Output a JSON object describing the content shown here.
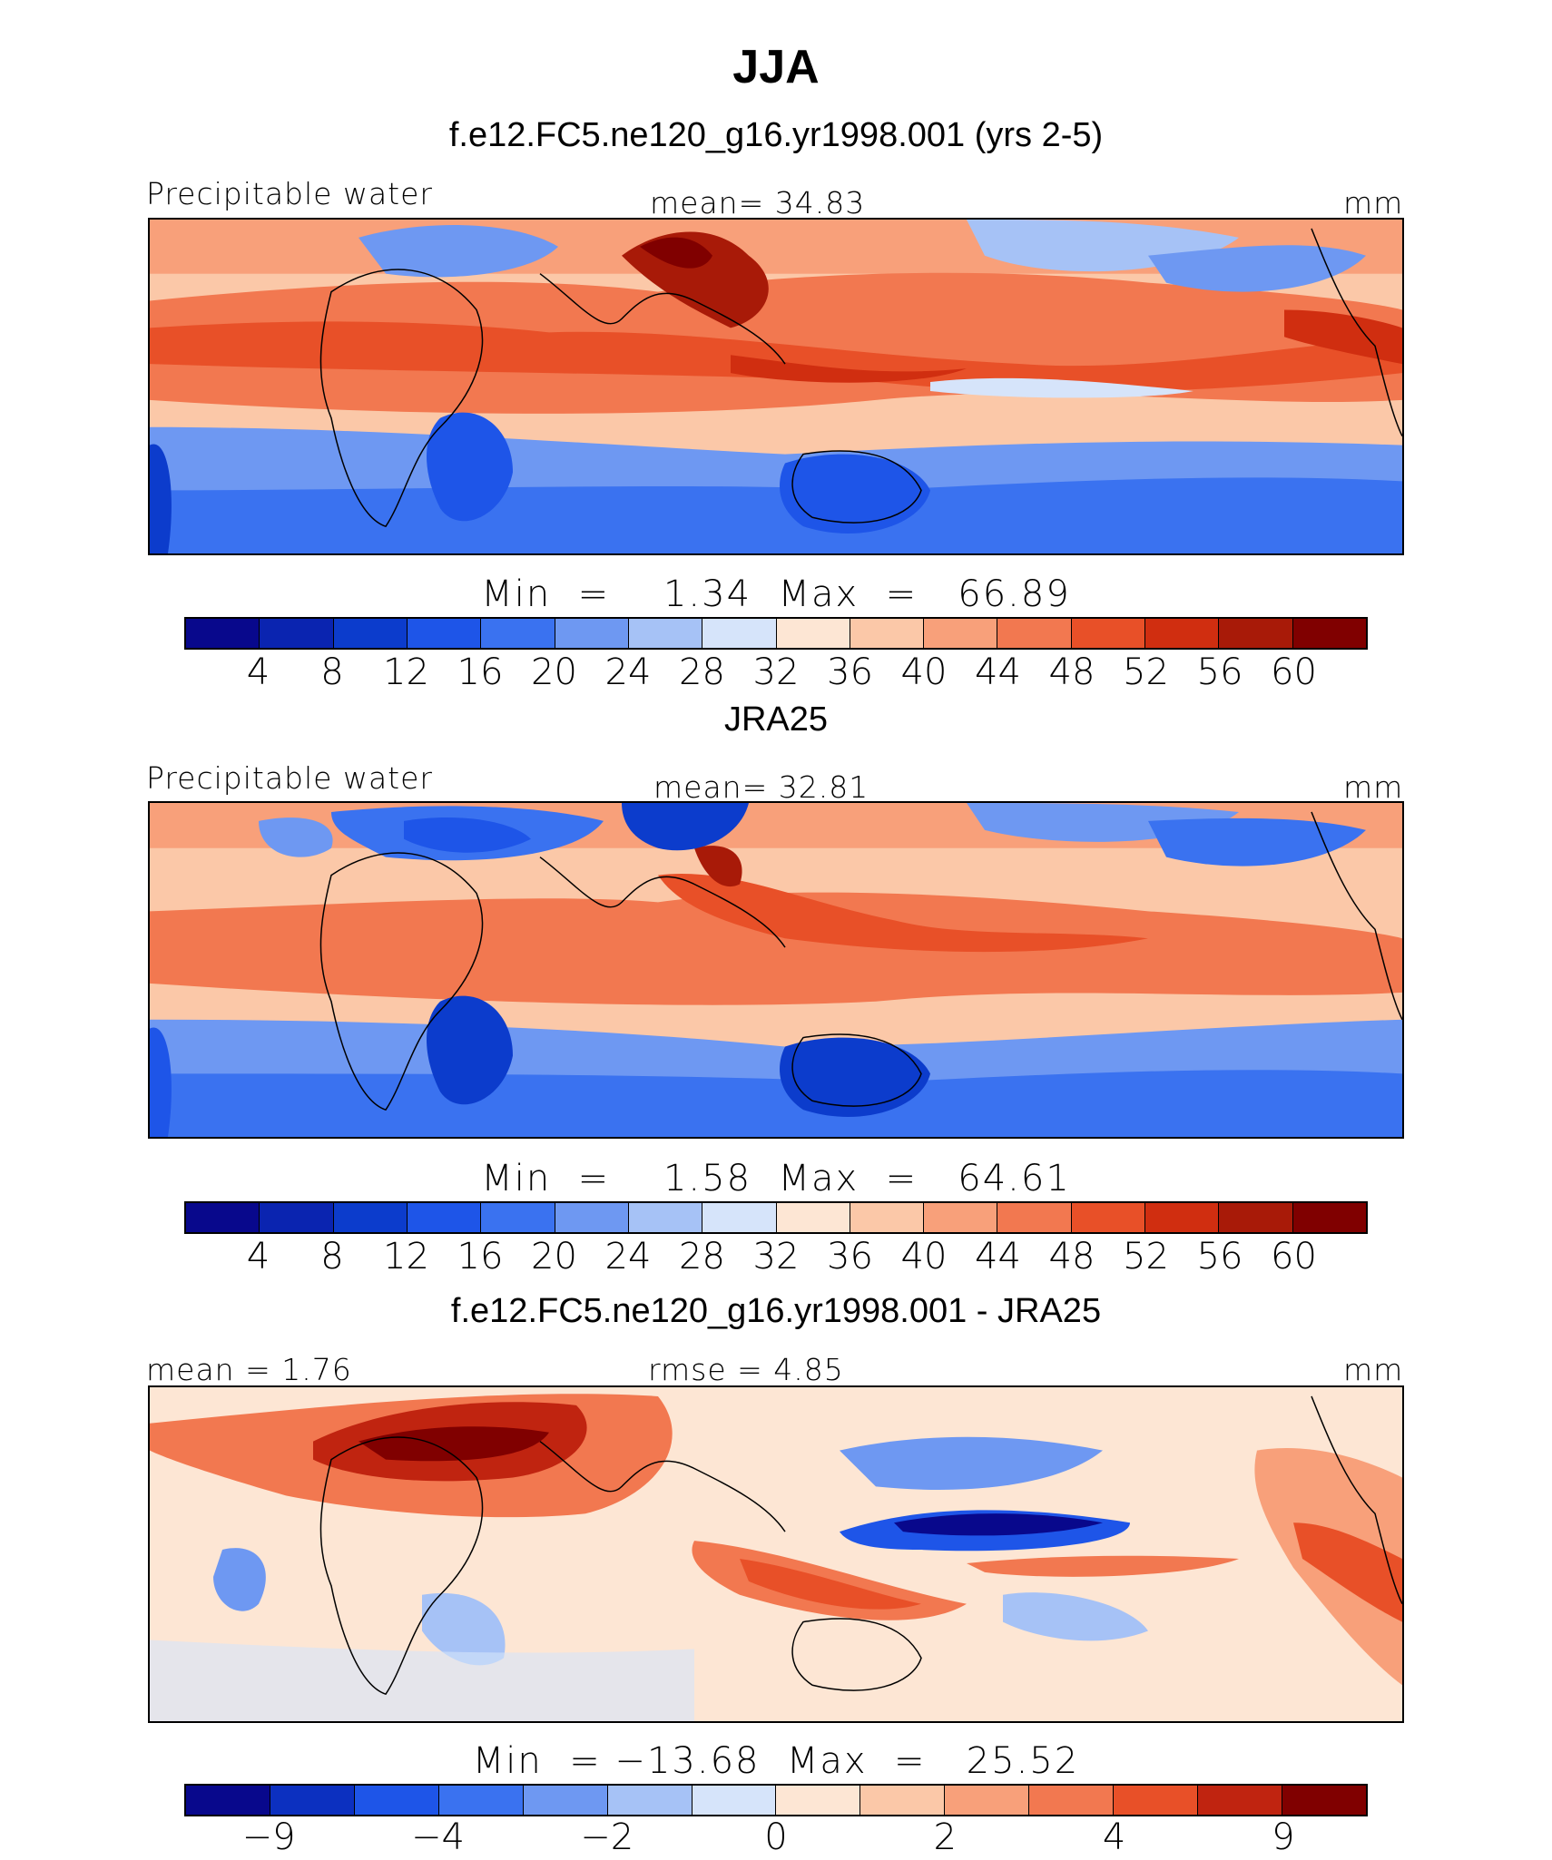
{
  "title": "JJA",
  "panels": [
    {
      "id": "model",
      "title": "f.e12.FC5.ne120_g16.yr1998.001 (yrs 2-5)",
      "left_label": "Precipitable water",
      "center_label": "mean=   34.83",
      "units": "mm",
      "stats": "Min  =    1.34  Max  =   66.89",
      "colorbar_ticks": [
        "4",
        "8",
        "12",
        "16",
        "20",
        "24",
        "28",
        "32",
        "36",
        "40",
        "44",
        "48",
        "52",
        "56",
        "60"
      ]
    },
    {
      "id": "obs",
      "title": "JRA25",
      "left_label": "Precipitable water",
      "center_label": "mean=   32.81",
      "units": "mm",
      "stats": "Min  =    1.58  Max  =   64.61",
      "colorbar_ticks": [
        "4",
        "8",
        "12",
        "16",
        "20",
        "24",
        "28",
        "32",
        "36",
        "40",
        "44",
        "48",
        "52",
        "56",
        "60"
      ]
    },
    {
      "id": "diff",
      "title": "f.e12.FC5.ne120_g16.yr1998.001 - JRA25",
      "left_label": "mean =    1.76",
      "center_label": "rmse =    4.85",
      "units": "mm",
      "stats": "Min  = −13.68  Max  =   25.52",
      "colorbar_ticks": [
        "−9",
        "−4",
        "−2",
        "0",
        "2",
        "4",
        "9"
      ]
    }
  ],
  "palette": [
    "#08088c",
    "#0a24b0",
    "#0c3ccc",
    "#1e55e8",
    "#3a72f0",
    "#6e98f2",
    "#a6c2f6",
    "#d6e4fa",
    "#fde6d4",
    "#fbc8a8",
    "#f8a07a",
    "#f27850",
    "#e85028",
    "#d02e10",
    "#a81a08",
    "#800000"
  ],
  "diff_palette": [
    "#08088c",
    "#0c30c0",
    "#1e55e8",
    "#3a72f0",
    "#6e98f2",
    "#a6c2f6",
    "#d6e4fa",
    "#fde6d4",
    "#fbc8a8",
    "#f8a07a",
    "#f27850",
    "#e85028",
    "#c02410",
    "#800000"
  ]
}
